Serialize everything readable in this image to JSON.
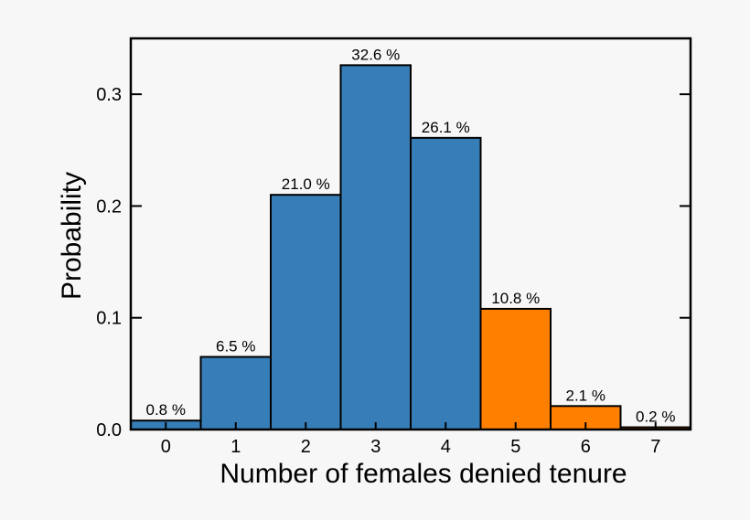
{
  "chart_data": {
    "type": "bar",
    "title": "",
    "xlabel": "Number of females denied tenure",
    "ylabel": "Probability",
    "categories": [
      "0",
      "1",
      "2",
      "3",
      "4",
      "5",
      "6",
      "7"
    ],
    "values": [
      0.008,
      0.065,
      0.21,
      0.326,
      0.261,
      0.108,
      0.021,
      0.002
    ],
    "data_labels": [
      "0.8 %",
      "6.5 %",
      "21.0 %",
      "32.6 %",
      "26.1 %",
      "10.8 %",
      "2.1 %",
      "0.2 %"
    ],
    "bar_colors": [
      "#377eb8",
      "#377eb8",
      "#377eb8",
      "#377eb8",
      "#377eb8",
      "#ff7f00",
      "#ff7f00",
      "#ff7f00"
    ],
    "yticks": [
      0.0,
      0.1,
      0.2,
      0.3
    ],
    "ytick_labels": [
      "0.0",
      "0.1",
      "0.2",
      "0.3"
    ],
    "ylim": [
      0,
      0.35
    ],
    "xlim": [
      -0.5,
      7.5
    ],
    "grid": false,
    "legend": "none"
  }
}
